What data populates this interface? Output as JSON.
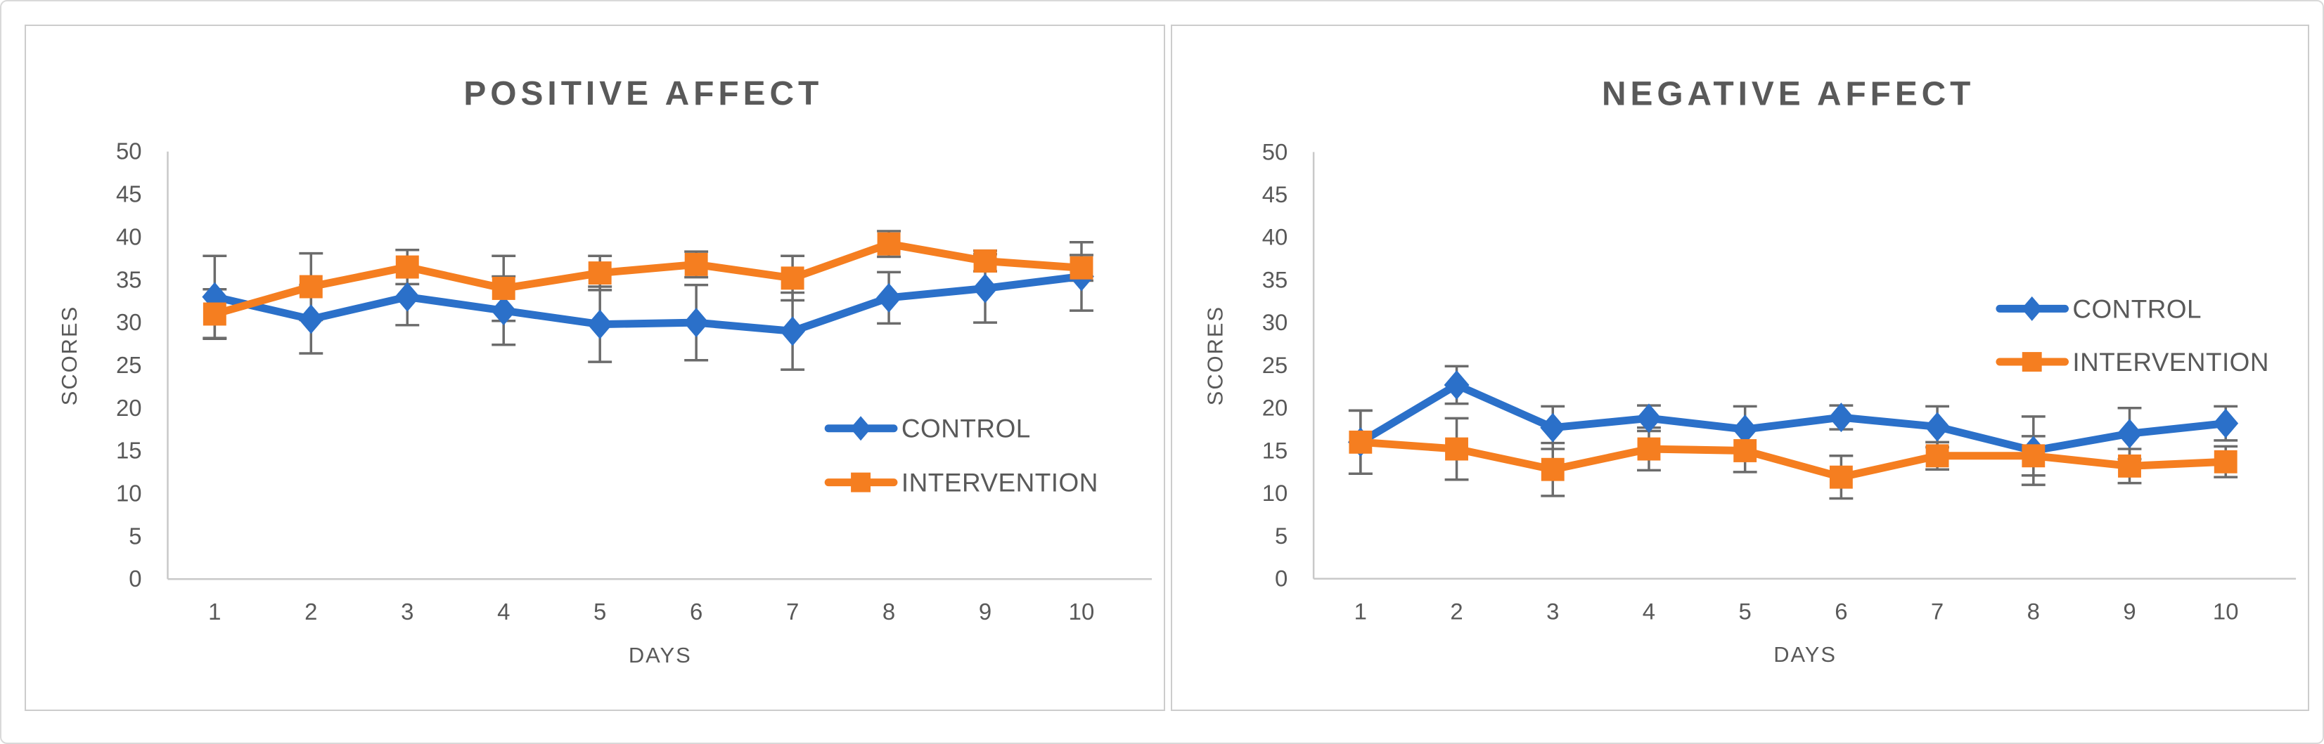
{
  "figure": {
    "background_color": "#ffffff",
    "outer_border_color": "#d9d9d9",
    "panel_border_color": "#cccccc"
  },
  "style": {
    "text_color": "#595959",
    "axis_line_color": "#c9c9c9",
    "error_bar_color": "#6b6b6b",
    "control_color": "#2b70c9",
    "intervention_color": "#f57e20"
  },
  "chart_data": [
    {
      "type": "line",
      "title": "POSITIVE AFFECT",
      "xlabel": "DAYS",
      "ylabel": "SCORES",
      "x": [
        1,
        2,
        3,
        4,
        5,
        6,
        7,
        8,
        9,
        10
      ],
      "ylim": [
        0,
        50
      ],
      "yticks": [
        0,
        5,
        10,
        15,
        20,
        25,
        30,
        35,
        40,
        45,
        50
      ],
      "grid": false,
      "error_bars": true,
      "legend_position": "inside-lower-right",
      "series": [
        {
          "name": "CONTROL",
          "color": "#2b70c9",
          "marker": "diamond",
          "values": [
            33,
            30.4,
            33,
            31.4,
            29.8,
            30,
            29,
            32.9,
            34,
            35.4
          ],
          "errors": [
            4.8,
            4,
            3.3,
            4,
            4.4,
            4.4,
            4.5,
            3,
            4,
            4
          ]
        },
        {
          "name": "INTERVENTION",
          "color": "#f57e20",
          "marker": "square",
          "values": [
            31,
            34.2,
            36.5,
            34,
            35.8,
            36.8,
            35.2,
            39.2,
            37.2,
            36.4
          ],
          "errors": [
            2.9,
            3.9,
            2,
            3.8,
            2,
            1.5,
            2.6,
            1.5,
            1.2,
            1.5
          ]
        }
      ]
    },
    {
      "type": "line",
      "title": "NEGATIVE AFFECT",
      "xlabel": "DAYS",
      "ylabel": "SCORES",
      "x": [
        1,
        2,
        3,
        4,
        5,
        6,
        7,
        8,
        9,
        10
      ],
      "ylim": [
        0,
        50
      ],
      "yticks": [
        0,
        5,
        10,
        15,
        20,
        25,
        30,
        35,
        40,
        45,
        50
      ],
      "grid": false,
      "error_bars": true,
      "legend_position": "inside-upper-right",
      "series": [
        {
          "name": "CONTROL",
          "color": "#2b70c9",
          "marker": "diamond",
          "values": [
            16,
            22.7,
            17.7,
            18.8,
            17.5,
            18.9,
            17.8,
            15,
            17,
            18.2
          ],
          "errors": [
            3.7,
            2.2,
            2.5,
            1.5,
            2.7,
            1.4,
            2.4,
            4,
            3,
            2
          ]
        },
        {
          "name": "INTERVENTION",
          "color": "#f57e20",
          "marker": "square",
          "values": [
            16,
            15.2,
            12.8,
            15.2,
            15,
            11.9,
            14.4,
            14.4,
            13.2,
            13.7
          ],
          "errors": [
            3.7,
            3.6,
            3.1,
            2.5,
            2.5,
            2.5,
            1.6,
            2.3,
            2,
            1.8
          ]
        }
      ]
    }
  ]
}
